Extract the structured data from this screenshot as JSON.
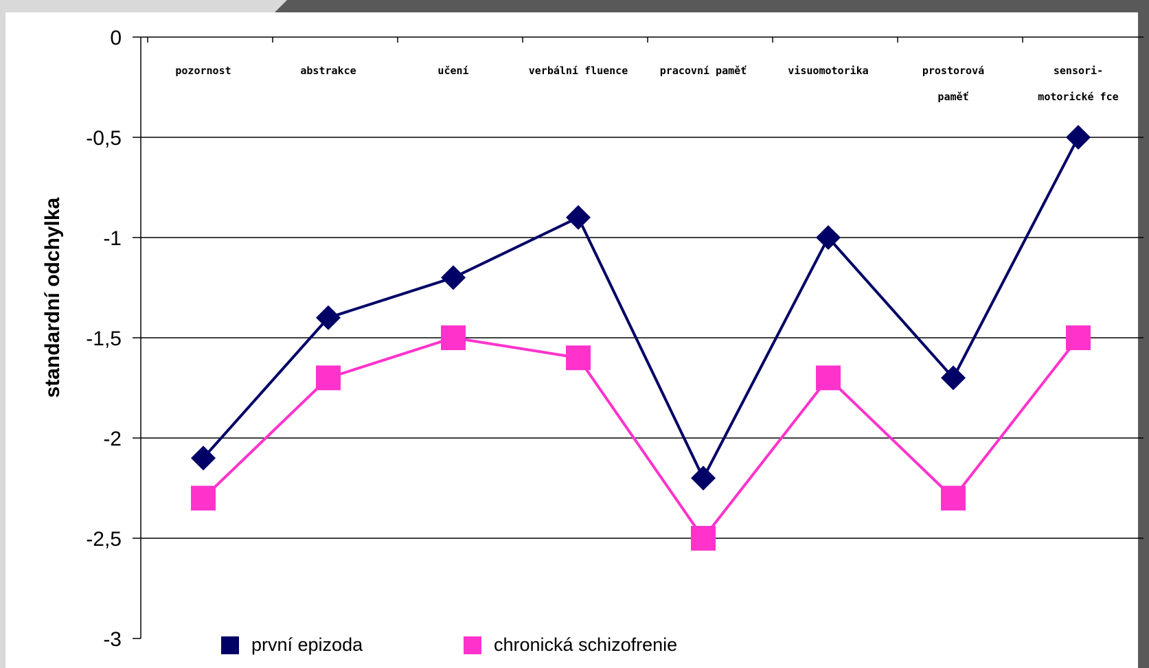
{
  "chart_data": {
    "type": "line",
    "ylabel": "standardní odchylka",
    "xlabel": "",
    "ylim": [
      -3,
      0
    ],
    "yticks": [
      "0",
      "-0,5",
      "-1",
      "-1,5",
      "-2",
      "-2,5",
      "-3"
    ],
    "ytick_values": [
      0,
      -0.5,
      -1,
      -1.5,
      -2,
      -2.5,
      -3
    ],
    "categories": [
      [
        "pozornost"
      ],
      [
        "abstrakce"
      ],
      [
        "učení"
      ],
      [
        "verbální fluence"
      ],
      [
        "pracovní paměť"
      ],
      [
        "visuomotorika"
      ],
      [
        "prostorová",
        "paměť"
      ],
      [
        "sensori-",
        "motorické fce"
      ]
    ],
    "grid": true,
    "legend_position": "bottom",
    "series": [
      {
        "name": "první epizoda",
        "color": "#000066",
        "marker": "diamond",
        "values": [
          -2.1,
          -1.4,
          -1.2,
          -0.9,
          -2.2,
          -1.0,
          -1.7,
          -0.5
        ]
      },
      {
        "name": "chronická schizofrenie",
        "color": "#ff33cc",
        "marker": "square",
        "values": [
          -2.3,
          -1.7,
          -1.5,
          -1.6,
          -2.5,
          -1.7,
          -2.3,
          -1.5
        ]
      }
    ]
  }
}
